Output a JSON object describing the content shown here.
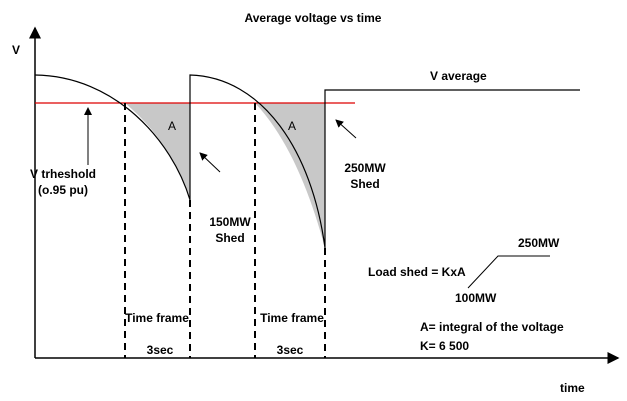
{
  "title": "Average voltage vs time",
  "axes": {
    "y_label": "V",
    "x_label": "time"
  },
  "labels": {
    "v_average": "V average",
    "area_1": "A",
    "area_2": "A",
    "threshold": [
      "V trheshold",
      "(o.95 pu)"
    ],
    "shed_1": [
      "150MW",
      "Shed"
    ],
    "shed_2": [
      "250MW",
      "Shed"
    ],
    "time_frame_1": [
      "Time frame",
      "3sec"
    ],
    "time_frame_2": [
      "Time frame",
      "3sec"
    ]
  },
  "formula": {
    "text": "Load shed = KxA",
    "upper": "250MW",
    "lower": "100MW",
    "notes": [
      "A= integral of the voltage",
      "K= 6 500"
    ]
  }
}
